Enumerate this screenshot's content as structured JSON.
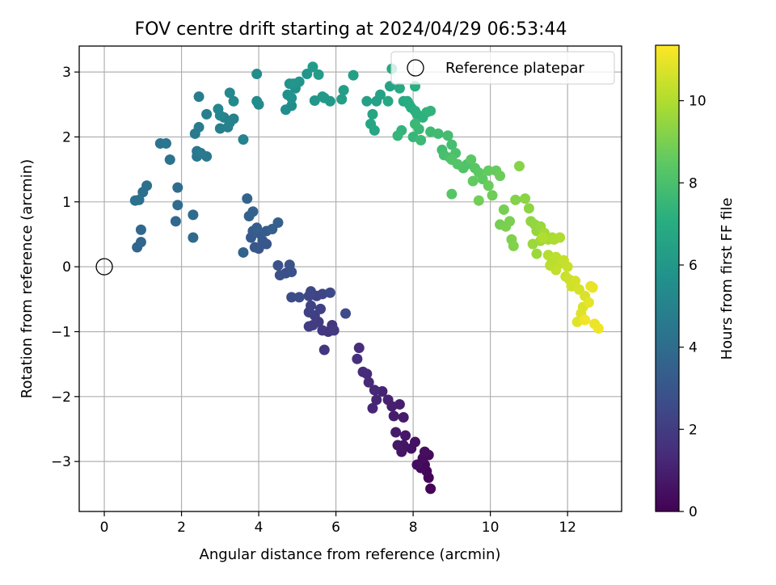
{
  "chart_data": {
    "type": "scatter",
    "title": "FOV centre drift starting at 2024/04/29 06:53:44",
    "xlabel": "Angular distance from reference (arcmin)",
    "ylabel": "Rotation from reference (arcmin)",
    "xlim": [
      -0.65,
      13.4
    ],
    "ylim": [
      -3.77,
      3.4
    ],
    "xticks": [
      0,
      2,
      4,
      6,
      8,
      10,
      12
    ],
    "yticks": [
      -3,
      -2,
      -1,
      0,
      1,
      2,
      3
    ],
    "grid": true,
    "legend": {
      "placement": "top-right",
      "entries": [
        "Reference platepar"
      ]
    },
    "reference_point": {
      "x": 0,
      "y": 0
    },
    "colorbar": {
      "label": "Hours from first FF file",
      "colormap": "viridis",
      "range": [
        0,
        11.35
      ],
      "ticks": [
        0,
        2,
        4,
        6,
        8,
        10
      ]
    },
    "points": [
      [
        8.45,
        -3.42,
        0.05
      ],
      [
        8.4,
        -3.25,
        0.1
      ],
      [
        8.35,
        -3.15,
        0.15
      ],
      [
        8.3,
        -3.05,
        0.2
      ],
      [
        8.2,
        -3.1,
        0.25
      ],
      [
        8.4,
        -2.9,
        0.3
      ],
      [
        8.25,
        -2.95,
        0.35
      ],
      [
        8.1,
        -3.05,
        0.4
      ],
      [
        8.3,
        -2.85,
        0.45
      ],
      [
        8.05,
        -2.7,
        0.5
      ],
      [
        7.95,
        -2.8,
        0.55
      ],
      [
        7.75,
        -2.75,
        0.6
      ],
      [
        7.7,
        -2.85,
        0.65
      ],
      [
        7.6,
        -2.75,
        0.7
      ],
      [
        7.8,
        -2.6,
        0.75
      ],
      [
        7.55,
        -2.55,
        0.8
      ],
      [
        7.75,
        -2.32,
        0.85
      ],
      [
        7.5,
        -2.3,
        0.9
      ],
      [
        7.65,
        -2.12,
        0.95
      ],
      [
        7.45,
        -2.15,
        1.0
      ],
      [
        7.35,
        -2.05,
        1.05
      ],
      [
        7.2,
        -1.92,
        1.1
      ],
      [
        7.05,
        -2.05,
        1.15
      ],
      [
        6.95,
        -2.18,
        1.2
      ],
      [
        7.0,
        -1.9,
        1.25
      ],
      [
        6.85,
        -1.78,
        1.3
      ],
      [
        6.8,
        -1.65,
        1.35
      ],
      [
        6.7,
        -1.62,
        1.4
      ],
      [
        6.6,
        -1.25,
        1.45
      ],
      [
        6.55,
        -1.42,
        1.55
      ],
      [
        5.8,
        -1.0,
        1.65
      ],
      [
        5.9,
        -0.9,
        1.75
      ],
      [
        5.7,
        -1.28,
        1.8
      ],
      [
        5.65,
        -0.98,
        1.85
      ],
      [
        5.95,
        -0.98,
        1.9
      ],
      [
        5.55,
        -0.85,
        1.95
      ],
      [
        5.4,
        -0.9,
        2.0
      ],
      [
        5.3,
        -0.92,
        2.05
      ],
      [
        5.45,
        -0.75,
        2.1
      ],
      [
        5.3,
        -0.7,
        2.15
      ],
      [
        5.6,
        -0.65,
        2.2
      ],
      [
        5.35,
        -0.6,
        2.25
      ],
      [
        5.5,
        -0.45,
        2.3
      ],
      [
        5.65,
        -0.42,
        2.35
      ],
      [
        5.3,
        -0.45,
        2.4
      ],
      [
        5.35,
        -0.38,
        2.45
      ],
      [
        5.85,
        -0.4,
        2.5
      ],
      [
        6.25,
        -0.72,
        2.55
      ],
      [
        4.85,
        -0.47,
        2.6
      ],
      [
        5.05,
        -0.47,
        2.65
      ],
      [
        4.7,
        -0.1,
        2.7
      ],
      [
        4.55,
        -0.13,
        2.75
      ],
      [
        4.85,
        -0.08,
        2.8
      ],
      [
        4.8,
        0.03,
        2.85
      ],
      [
        4.5,
        0.02,
        2.9
      ],
      [
        4.2,
        0.35,
        2.95
      ],
      [
        4.0,
        0.28,
        3.0
      ],
      [
        3.9,
        0.3,
        3.05
      ],
      [
        4.1,
        0.4,
        3.1
      ],
      [
        3.8,
        0.45,
        3.15
      ],
      [
        4.05,
        0.5,
        3.2
      ],
      [
        3.85,
        0.55,
        3.25
      ],
      [
        4.2,
        0.55,
        3.3
      ],
      [
        3.95,
        0.6,
        3.35
      ],
      [
        4.35,
        0.58,
        3.4
      ],
      [
        4.5,
        0.68,
        3.45
      ],
      [
        3.75,
        0.78,
        3.5
      ],
      [
        3.85,
        0.85,
        3.55
      ],
      [
        3.7,
        1.05,
        3.6
      ],
      [
        3.6,
        0.22,
        3.65
      ],
      [
        0.85,
        0.3,
        3.7
      ],
      [
        0.95,
        0.38,
        3.75
      ],
      [
        0.95,
        0.57,
        3.8
      ],
      [
        1.85,
        0.7,
        3.85
      ],
      [
        2.3,
        0.45,
        3.9
      ],
      [
        2.3,
        0.8,
        3.95
      ],
      [
        1.9,
        0.95,
        4.0
      ],
      [
        1.9,
        1.22,
        4.05
      ],
      [
        1.0,
        1.15,
        4.1
      ],
      [
        1.1,
        1.25,
        4.15
      ],
      [
        0.8,
        1.02,
        4.2
      ],
      [
        0.9,
        1.03,
        4.25
      ],
      [
        1.7,
        1.65,
        4.3
      ],
      [
        1.45,
        1.9,
        4.35
      ],
      [
        1.6,
        1.9,
        4.4
      ],
      [
        2.4,
        1.7,
        4.45
      ],
      [
        2.4,
        1.78,
        4.5
      ],
      [
        2.65,
        1.7,
        4.55
      ],
      [
        2.5,
        1.75,
        4.6
      ],
      [
        2.35,
        2.05,
        4.65
      ],
      [
        2.45,
        2.15,
        4.7
      ],
      [
        2.45,
        2.62,
        4.75
      ],
      [
        2.65,
        2.35,
        4.8
      ],
      [
        3.0,
        2.13,
        4.85
      ],
      [
        3.2,
        2.15,
        4.9
      ],
      [
        3.1,
        2.3,
        4.95
      ],
      [
        3.35,
        2.28,
        5.0
      ],
      [
        3.25,
        2.22,
        5.05
      ],
      [
        3.6,
        1.96,
        5.1
      ],
      [
        2.95,
        2.43,
        5.15
      ],
      [
        3.0,
        2.33,
        5.2
      ],
      [
        3.25,
        2.68,
        5.25
      ],
      [
        3.35,
        2.55,
        5.3
      ],
      [
        3.95,
        2.55,
        5.35
      ],
      [
        4.0,
        2.5,
        5.4
      ],
      [
        3.95,
        2.97,
        5.45
      ],
      [
        4.7,
        2.42,
        5.5
      ],
      [
        4.85,
        2.48,
        5.55
      ],
      [
        4.75,
        2.65,
        5.6
      ],
      [
        4.95,
        2.75,
        5.65
      ],
      [
        4.85,
        2.6,
        5.7
      ],
      [
        4.8,
        2.82,
        5.75
      ],
      [
        5.05,
        2.85,
        5.8
      ],
      [
        5.25,
        2.97,
        5.85
      ],
      [
        4.9,
        2.82,
        5.9
      ],
      [
        5.45,
        2.56,
        5.95
      ],
      [
        5.65,
        2.62,
        6.0
      ],
      [
        5.85,
        2.55,
        6.05
      ],
      [
        5.7,
        2.6,
        6.1
      ],
      [
        5.4,
        3.08,
        6.15
      ],
      [
        5.55,
        2.96,
        6.2
      ],
      [
        6.2,
        2.72,
        6.25
      ],
      [
        6.15,
        2.58,
        6.3
      ],
      [
        6.45,
        2.95,
        6.35
      ],
      [
        6.8,
        2.55,
        6.4
      ],
      [
        7.05,
        2.55,
        6.45
      ],
      [
        7.15,
        2.65,
        6.5
      ],
      [
        7.4,
        2.78,
        6.55
      ],
      [
        6.95,
        2.35,
        6.6
      ],
      [
        6.9,
        2.2,
        6.65
      ],
      [
        7.0,
        2.1,
        6.7
      ],
      [
        7.35,
        2.55,
        6.75
      ],
      [
        7.45,
        3.05,
        6.8
      ],
      [
        7.65,
        2.75,
        6.85
      ],
      [
        7.75,
        2.55,
        6.9
      ],
      [
        7.85,
        2.55,
        6.95
      ],
      [
        7.9,
        2.5,
        7.0
      ],
      [
        7.95,
        2.45,
        7.05
      ],
      [
        8.05,
        2.78,
        7.1
      ],
      [
        8.05,
        2.4,
        7.15
      ],
      [
        8.1,
        2.35,
        7.2
      ],
      [
        8.25,
        2.3,
        7.25
      ],
      [
        8.35,
        2.38,
        7.3
      ],
      [
        8.45,
        2.4,
        7.35
      ],
      [
        7.7,
        2.1,
        7.4
      ],
      [
        7.6,
        2.02,
        7.45
      ],
      [
        8.0,
        2.0,
        7.5
      ],
      [
        8.15,
        2.12,
        7.55
      ],
      [
        8.05,
        2.2,
        7.6
      ],
      [
        8.2,
        1.95,
        7.65
      ],
      [
        8.45,
        2.08,
        7.7
      ],
      [
        8.65,
        2.05,
        7.75
      ],
      [
        8.75,
        1.8,
        7.8
      ],
      [
        8.9,
        2.02,
        7.85
      ],
      [
        9.0,
        1.88,
        7.9
      ],
      [
        8.8,
        1.72,
        7.95
      ],
      [
        8.95,
        1.68,
        8.0
      ],
      [
        9.1,
        1.75,
        8.05
      ],
      [
        9.4,
        1.58,
        8.1
      ],
      [
        9.3,
        1.52,
        8.15
      ],
      [
        9.0,
        1.65,
        8.2
      ],
      [
        9.15,
        1.58,
        8.25
      ],
      [
        9.0,
        1.12,
        8.3
      ],
      [
        9.6,
        1.52,
        8.35
      ],
      [
        9.5,
        1.65,
        8.4
      ],
      [
        9.7,
        1.45,
        8.45
      ],
      [
        9.8,
        1.35,
        8.5
      ],
      [
        9.55,
        1.32,
        8.55
      ],
      [
        9.95,
        1.48,
        8.6
      ],
      [
        10.15,
        1.48,
        8.65
      ],
      [
        9.95,
        1.25,
        8.7
      ],
      [
        10.25,
        1.4,
        8.75
      ],
      [
        10.05,
        1.1,
        8.8
      ],
      [
        9.7,
        1.02,
        8.85
      ],
      [
        10.25,
        0.65,
        8.9
      ],
      [
        10.35,
        0.88,
        8.95
      ],
      [
        10.5,
        0.7,
        9.0
      ],
      [
        10.4,
        0.62,
        9.05
      ],
      [
        10.55,
        0.42,
        9.1
      ],
      [
        10.6,
        0.32,
        9.15
      ],
      [
        10.65,
        1.03,
        9.2
      ],
      [
        10.75,
        1.55,
        9.25
      ],
      [
        10.9,
        1.05,
        9.3
      ],
      [
        11.0,
        0.9,
        9.35
      ],
      [
        11.05,
        0.7,
        9.4
      ],
      [
        11.15,
        0.65,
        9.45
      ],
      [
        11.2,
        0.55,
        9.5
      ],
      [
        11.3,
        0.62,
        9.55
      ],
      [
        11.1,
        0.35,
        9.6
      ],
      [
        11.2,
        0.2,
        9.65
      ],
      [
        11.3,
        0.4,
        9.7
      ],
      [
        11.4,
        0.52,
        9.75
      ],
      [
        11.5,
        0.42,
        9.8
      ],
      [
        11.6,
        0.45,
        9.85
      ],
      [
        11.65,
        0.42,
        9.9
      ],
      [
        11.8,
        0.45,
        9.95
      ],
      [
        11.35,
        0.45,
        10.0
      ],
      [
        11.5,
        0.18,
        10.05
      ],
      [
        11.6,
        0.1,
        10.1
      ],
      [
        11.55,
        0.02,
        10.15
      ],
      [
        11.7,
        0.15,
        10.2
      ],
      [
        11.8,
        0.05,
        10.25
      ],
      [
        11.7,
        -0.05,
        10.3
      ],
      [
        11.9,
        0.1,
        10.35
      ],
      [
        12.0,
        0.0,
        10.4
      ],
      [
        11.95,
        -0.15,
        10.45
      ],
      [
        12.05,
        -0.2,
        10.5
      ],
      [
        12.1,
        -0.3,
        10.55
      ],
      [
        12.2,
        -0.22,
        10.6
      ],
      [
        12.3,
        -0.35,
        10.65
      ],
      [
        12.45,
        -0.45,
        10.7
      ],
      [
        12.4,
        -0.62,
        10.75
      ],
      [
        12.35,
        -0.72,
        10.8
      ],
      [
        12.25,
        -0.85,
        10.85
      ],
      [
        12.55,
        -0.55,
        10.9
      ],
      [
        12.6,
        -0.3,
        10.95
      ],
      [
        12.65,
        -0.32,
        11.0
      ],
      [
        12.7,
        -0.88,
        11.05
      ],
      [
        12.8,
        -0.95,
        11.1
      ],
      [
        12.45,
        -0.82,
        11.15
      ]
    ]
  }
}
